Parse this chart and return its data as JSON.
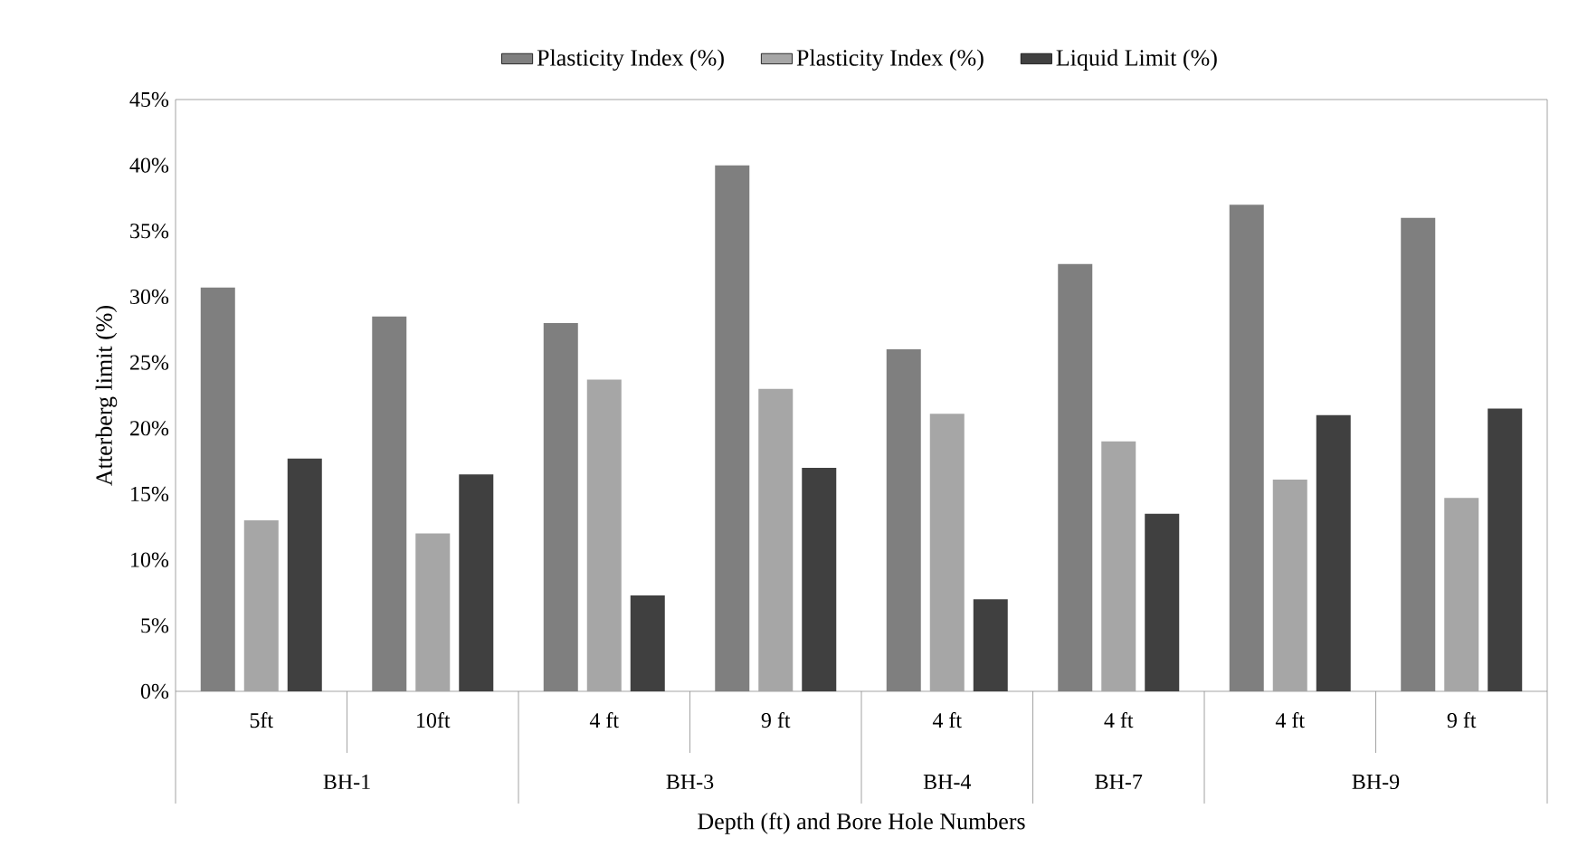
{
  "chart_data": {
    "type": "bar",
    "xlabel": "Depth  (ft) and Bore Hole Numbers",
    "ylabel": "Atterberg limit (%)",
    "categories": [
      "5ft",
      "10ft",
      "4 ft",
      "9 ft",
      "4 ft",
      "4 ft",
      "4 ft",
      "9 ft"
    ],
    "series": [
      {
        "name": "Plasticity Index (%)",
        "color": "#7f7f7f",
        "values": [
          30.7,
          28.5,
          28,
          40,
          26,
          32.5,
          37,
          36
        ]
      },
      {
        "name": "Plasticity Index (%)",
        "color": "#a6a6a6",
        "values": [
          13,
          12,
          23.7,
          23,
          21.1,
          19,
          16.1,
          14.7
        ]
      },
      {
        "name": "Liquid Limit (%)",
        "color": "#404040",
        "values": [
          17.7,
          16.5,
          7.3,
          17,
          7,
          13.5,
          21,
          21.5
        ]
      }
    ],
    "ylim": [
      0,
      45
    ],
    "yticks": [
      {
        "value": 0,
        "label": "0%"
      },
      {
        "value": 5,
        "label": "5%"
      },
      {
        "value": 10,
        "label": "10%"
      },
      {
        "value": 15,
        "label": "15%"
      },
      {
        "value": 20,
        "label": "20%"
      },
      {
        "value": 25,
        "label": "25%"
      },
      {
        "value": 30,
        "label": "30%"
      },
      {
        "value": 35,
        "label": "35%"
      },
      {
        "value": 40,
        "label": "40%"
      },
      {
        "value": 45,
        "label": "45%"
      }
    ],
    "annotations": [
      "BH-1",
      "BH-3",
      "BH-4",
      "BH-7",
      "BH-9"
    ],
    "legend": "top",
    "grid": false
  }
}
